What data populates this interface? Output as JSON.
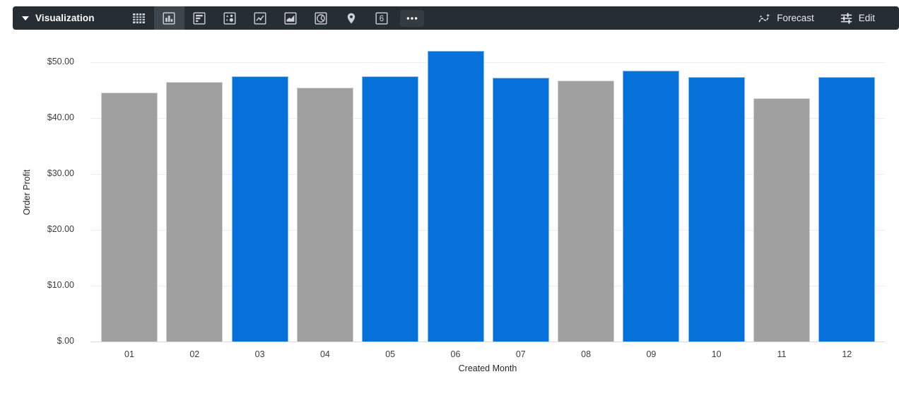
{
  "theme": {
    "toolbar_bg": "#262d33",
    "toolbar_selected_bg": "#3e464d",
    "icon_color": "#cdd1d5",
    "toolbar_text": "#e8eaed",
    "bar_blue": "#0671d9",
    "bar_gray": "#a0a0a0",
    "grid_color": "#ececec",
    "axis_text": "#3d3d3d"
  },
  "toolbar": {
    "title": "Visualization",
    "viz_types": [
      "table",
      "column",
      "bar",
      "scatter",
      "line",
      "area",
      "pie",
      "map",
      "single-value",
      "more"
    ],
    "selected_viz_type": "column",
    "forecast_label": "Forecast",
    "edit_label": "Edit",
    "single_value_glyph": "6",
    "more_glyph": "•••"
  },
  "chart_data": {
    "type": "bar",
    "title": "",
    "xlabel": "Created Month",
    "ylabel": "Order Profit",
    "categories": [
      "01",
      "02",
      "03",
      "04",
      "05",
      "06",
      "07",
      "08",
      "09",
      "10",
      "11",
      "12"
    ],
    "values": [
      44.6,
      46.4,
      47.5,
      45.5,
      47.5,
      52.0,
      47.2,
      46.7,
      48.5,
      47.3,
      43.6,
      47.4
    ],
    "bar_colors": [
      "gray",
      "gray",
      "blue",
      "gray",
      "blue",
      "blue",
      "blue",
      "gray",
      "blue",
      "blue",
      "gray",
      "blue"
    ],
    "series_colors": {
      "blue": "#0671d9",
      "gray": "#a0a0a0"
    },
    "ylim": [
      0,
      55
    ],
    "yticks": [
      0,
      10,
      20,
      30,
      40,
      50
    ],
    "ytick_labels": [
      "$.00",
      "$10.00",
      "$20.00",
      "$30.00",
      "$40.00",
      "$50.00"
    ],
    "grid": true,
    "legend": "none"
  }
}
